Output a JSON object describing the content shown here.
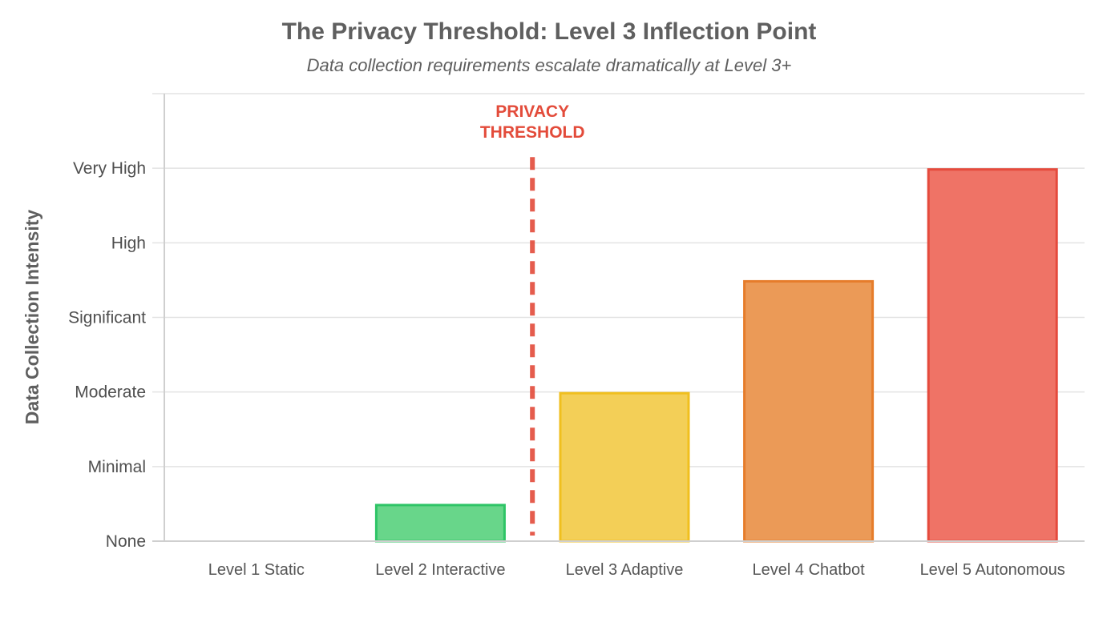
{
  "chart_data": {
    "type": "bar",
    "title": "The Privacy Threshold: Level 3 Inflection Point",
    "subtitle": "Data collection requirements escalate dramatically at Level 3+",
    "xlabel": "",
    "ylabel": "Data Collection Intensity",
    "categories": [
      "Level 1 Static",
      "Level 2 Interactive",
      "Level 3 Adaptive",
      "Level 4 Chatbot",
      "Level 5 Autonomous"
    ],
    "values": [
      0,
      0.5,
      2,
      3.5,
      5
    ],
    "ylim": [
      0,
      6
    ],
    "yticks": [
      {
        "value": 0,
        "label": "None"
      },
      {
        "value": 1,
        "label": "Minimal"
      },
      {
        "value": 2,
        "label": "Moderate"
      },
      {
        "value": 3,
        "label": "Significant"
      },
      {
        "value": 4,
        "label": "High"
      },
      {
        "value": 5,
        "label": "Very High"
      }
    ],
    "grid": true,
    "bar_colors": [
      {
        "fill": "#b0b0b0",
        "stroke": "#9a9a9a"
      },
      {
        "fill": "#68d68a",
        "stroke": "#2ec466"
      },
      {
        "fill": "#f3cf57",
        "stroke": "#f0bf1e"
      },
      {
        "fill": "#eb9a57",
        "stroke": "#e67c2a"
      },
      {
        "fill": "#ef7366",
        "stroke": "#e54a3c"
      }
    ],
    "annotation": {
      "text_lines": [
        "PRIVACY",
        "THRESHOLD"
      ],
      "between_categories": [
        1,
        2
      ],
      "line_top_value": 5.15,
      "color": "#e34b3a",
      "style": "dashed"
    }
  }
}
